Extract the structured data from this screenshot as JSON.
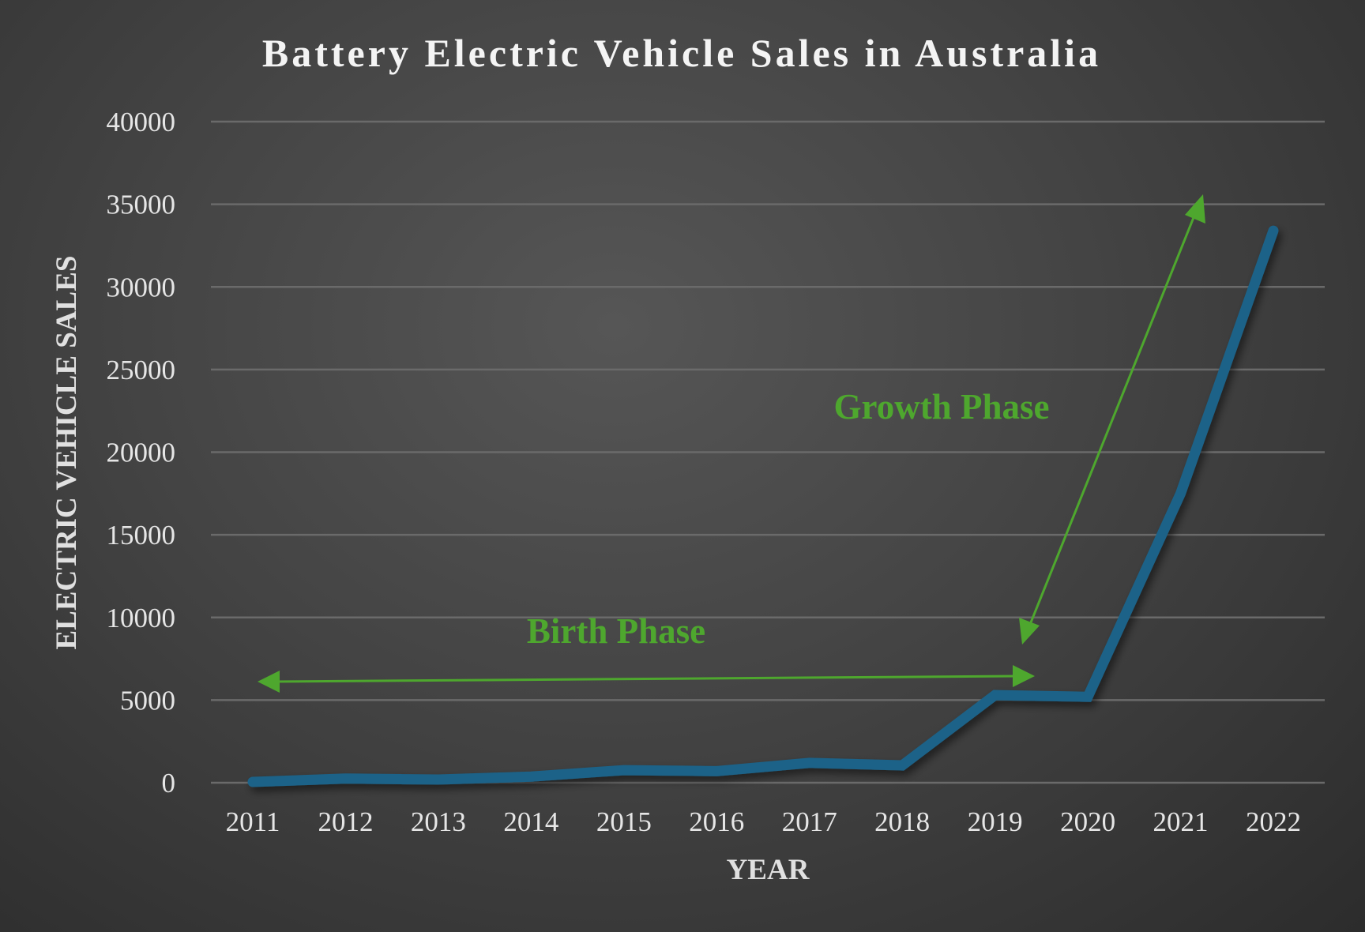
{
  "chart_data": {
    "type": "line",
    "title": "Battery Electric Vehicle Sales in Australia",
    "xlabel": "YEAR",
    "ylabel": "ELECTRIC VEHICLE SALES",
    "categories": [
      "2011",
      "2012",
      "2013",
      "2014",
      "2015",
      "2016",
      "2017",
      "2018",
      "2019",
      "2020",
      "2021",
      "2022"
    ],
    "values": [
      50,
      250,
      190,
      370,
      760,
      700,
      1200,
      1050,
      5300,
      5200,
      17500,
      33400
    ],
    "ylim": [
      0,
      40000
    ],
    "yticks": [
      "0",
      "5000",
      "10000",
      "15000",
      "20000",
      "25000",
      "30000",
      "35000",
      "40000"
    ],
    "grid": true,
    "line_color": "#1b6288",
    "annotations": [
      {
        "text": "Birth Phase",
        "color": "#4ea72e",
        "arrow": "double-headed, 2011 to 2019"
      },
      {
        "text": "Growth Phase",
        "color": "#4ea72e",
        "arrow": "double-headed, 2019 upward to 2021"
      }
    ]
  }
}
